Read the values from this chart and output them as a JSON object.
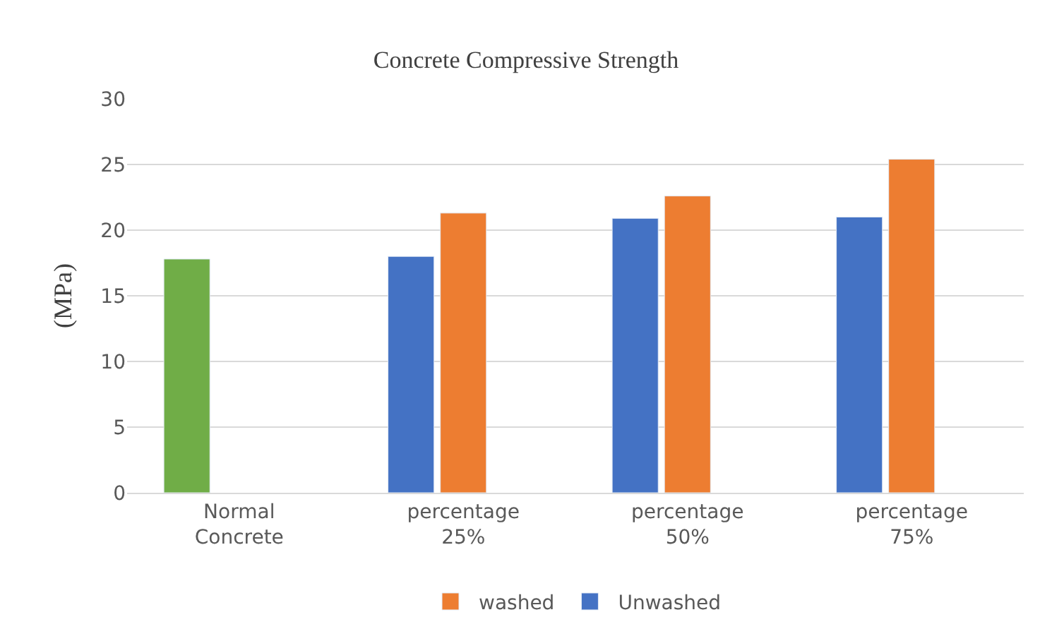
{
  "chart_data": {
    "type": "bar",
    "title": "Concrete Compressive Strength",
    "ylabel": "(MPa)",
    "categories": [
      "Normal Concrete",
      "percentage 25%",
      "percentage 50%",
      "percentage 75%"
    ],
    "series": [
      {
        "name": "Unwashed",
        "color": "#4472c4",
        "colors": [
          "#70ad47",
          "#4472c4",
          "#4472c4",
          "#4472c4"
        ],
        "values": [
          17.8,
          18.0,
          20.9,
          21.0
        ]
      },
      {
        "name": "washed",
        "color": "#ed7d31",
        "values": [
          null,
          21.3,
          22.6,
          25.4
        ]
      }
    ],
    "ylim": [
      0,
      30
    ],
    "yticks": [
      0,
      5,
      10,
      15,
      20,
      25,
      30
    ],
    "grid": "y",
    "legend": "bottom"
  }
}
